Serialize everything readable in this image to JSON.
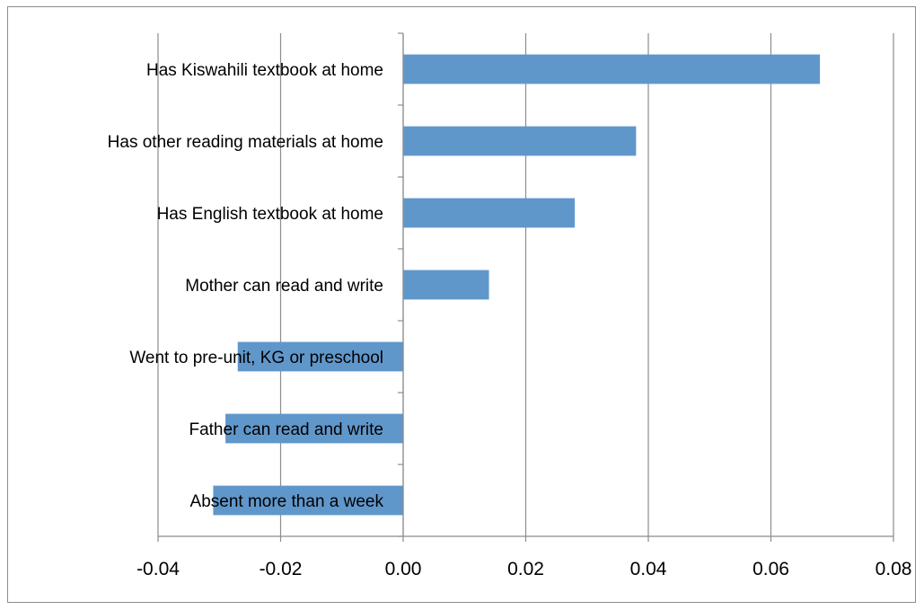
{
  "chart_data": {
    "type": "bar",
    "orientation": "horizontal",
    "categories": [
      "Has Kiswahili textbook at home",
      "Has other reading materials at home",
      "Has English textbook at home",
      "Mother can read and write",
      "Went to pre-unit, KG or preschool",
      "Father can read and write",
      "Absent more than a week"
    ],
    "values": [
      0.068,
      0.038,
      0.028,
      0.014,
      -0.027,
      -0.029,
      -0.031
    ],
    "xlim": [
      -0.04,
      0.08
    ],
    "xticks": [
      "-0.04",
      "-0.02",
      "0.00",
      "0.02",
      "0.04",
      "0.06",
      "0.08"
    ],
    "grid": "vertical",
    "title": "",
    "xlabel": "",
    "ylabel": "",
    "bar_color": "#6097cb"
  }
}
